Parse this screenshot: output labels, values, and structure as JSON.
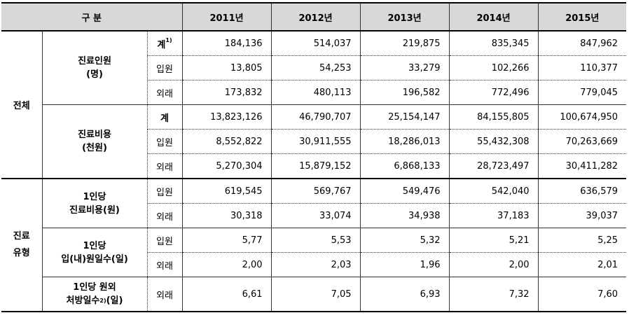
{
  "header": {
    "division": "구 분",
    "years": [
      "2011년",
      "2012년",
      "2013년",
      "2014년",
      "2015년"
    ]
  },
  "sections": {
    "total": {
      "label": "전체",
      "patients": {
        "label_line1": "진료인원",
        "label_line2": "(명)",
        "rows": [
          {
            "sub": "계",
            "sup": "1)",
            "values": [
              "184,136",
              "514,037",
              "219,875",
              "835,345",
              "847,962"
            ]
          },
          {
            "sub": "입원",
            "values": [
              "13,805",
              "54,253",
              "33,279",
              "102,266",
              "110,377"
            ]
          },
          {
            "sub": "외래",
            "values": [
              "173,832",
              "480,113",
              "196,582",
              "772,496",
              "779,045"
            ]
          }
        ]
      },
      "cost": {
        "label_line1": "진료비용",
        "label_line2": "(천원)",
        "rows": [
          {
            "sub": "계",
            "values": [
              "13,823,126",
              "46,790,707",
              "25,154,147",
              "84,155,805",
              "100,674,950"
            ]
          },
          {
            "sub": "입원",
            "values": [
              "8,552,822",
              "30,911,555",
              "18,286,013",
              "55,432,308",
              "70,263,669"
            ]
          },
          {
            "sub": "외래",
            "values": [
              "5,270,304",
              "15,879,152",
              "6,868,133",
              "28,723,497",
              "30,411,282"
            ]
          }
        ]
      }
    },
    "type": {
      "label_line1": "진료",
      "label_line2": "유형",
      "per_cost": {
        "label_line1": "1인당",
        "label_line2": "진료비용(원)",
        "rows": [
          {
            "sub": "입원",
            "values": [
              "619,545",
              "569,767",
              "549,476",
              "542,040",
              "636,579"
            ]
          },
          {
            "sub": "외래",
            "values": [
              "30,318",
              "33,074",
              "34,938",
              "37,183",
              "39,037"
            ]
          }
        ]
      },
      "per_days": {
        "label_line1": "1인당",
        "label_line2": "입(내)원일수(일)",
        "rows": [
          {
            "sub": "입원",
            "values": [
              "5,77",
              "5,53",
              "5,32",
              "5,21",
              "5,25"
            ]
          },
          {
            "sub": "외래",
            "values": [
              "2,00",
              "2,03",
              "1,96",
              "2,00",
              "2,01"
            ]
          }
        ]
      },
      "per_rx": {
        "label_line1": "1인당 원외",
        "label_line2": "처방일수",
        "label_sup": "2)",
        "label_tail": "(일)",
        "rows": [
          {
            "sub": "외래",
            "values": [
              "6,61",
              "7,05",
              "6,93",
              "7,32",
              "7,60"
            ]
          }
        ]
      }
    }
  }
}
